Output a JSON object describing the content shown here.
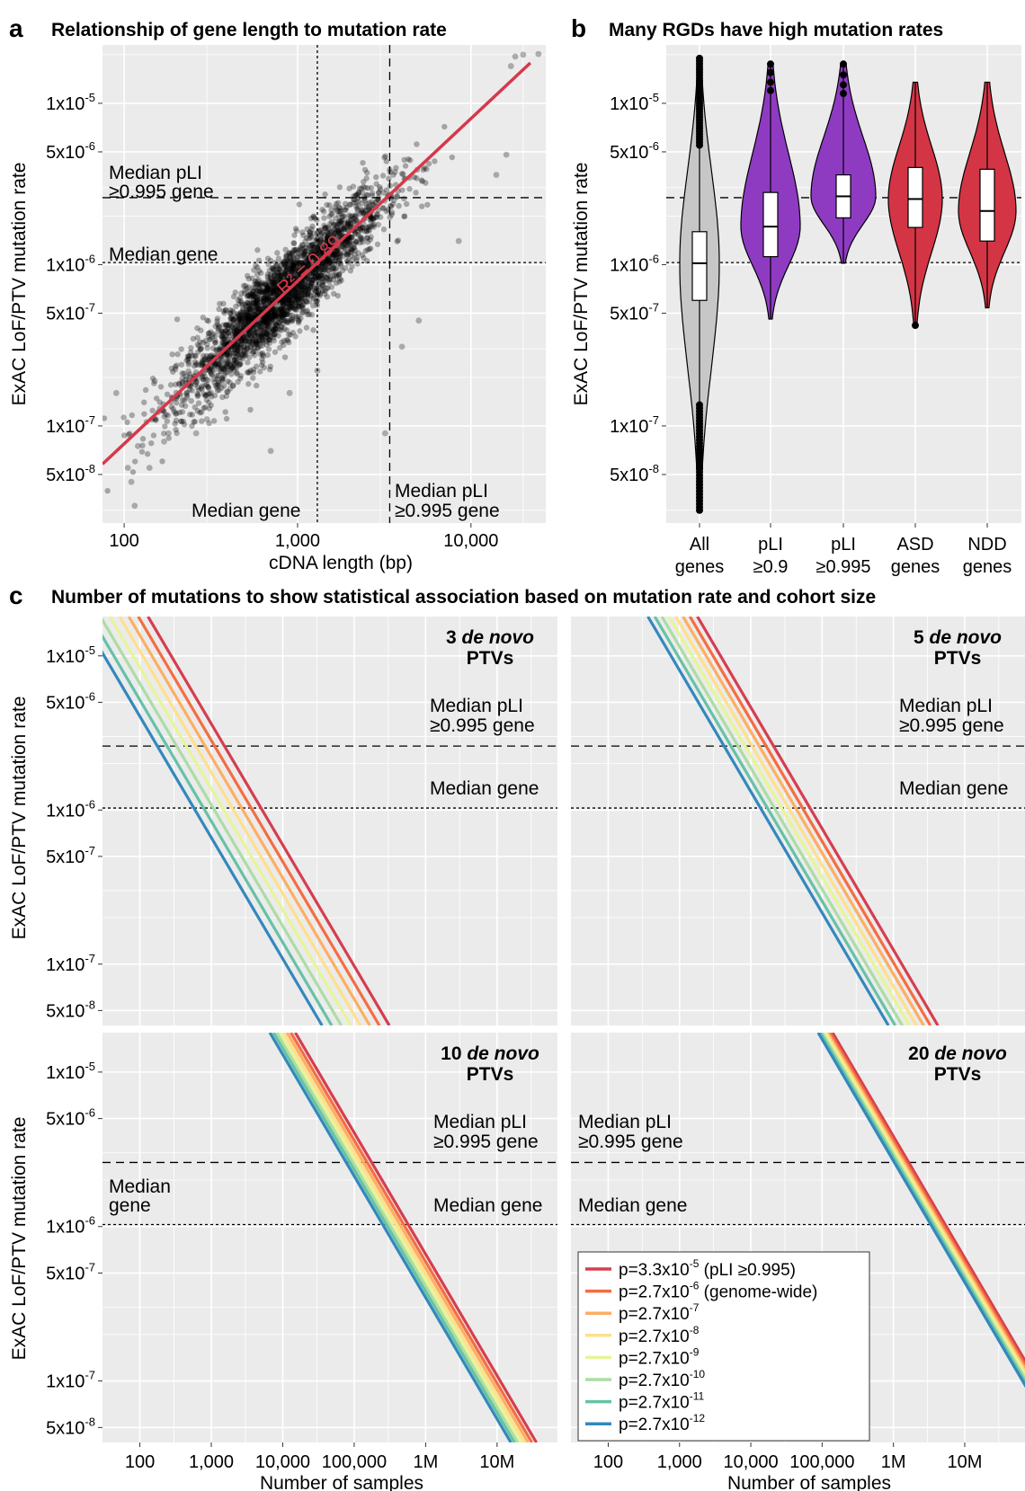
{
  "colors": {
    "panel_bg": "#EBEBEB",
    "grid": "#ffffff",
    "fit_line": "#D6384B",
    "all_genes": "#C7C7C7",
    "pli_violet": "#8E3BC2",
    "asd_ndd_red": "#D43545",
    "line_palette": [
      "#D53E4F",
      "#F46D43",
      "#FDAE61",
      "#FEE08B",
      "#E6F598",
      "#ABDDA4",
      "#66C2A5",
      "#3288BD"
    ]
  },
  "panels": {
    "a": {
      "label": "a",
      "title": "Relationship of gene length to mutation rate",
      "ylabel": "ExAC LoF/PTV mutation rate",
      "xlabel": "cDNA length (bp)",
      "x_ticks": [
        "100",
        "1,000",
        "10,000"
      ],
      "y_ticks": [
        "1x10",
        "5x10",
        "1x10",
        "5x10",
        "1x10",
        "5x10"
      ],
      "y_tick_exps": [
        "-5",
        "-6",
        "-6",
        "-7",
        "-7",
        "-8"
      ],
      "r2_label": "R² = 0.89",
      "ann_median_pli_1": "Median pLI",
      "ann_median_pli_2": "≥0.995 gene",
      "ann_median_gene": "Median gene",
      "ann_median_gene_x": "Median gene",
      "ann_median_pli_x1": "Median pLI",
      "ann_median_pli_x2": "≥0.995 gene"
    },
    "b": {
      "label": "b",
      "title": "Many RGDs have high mutation rates",
      "ylabel": "ExAC LoF/PTV mutation rate",
      "y_ticks": [
        "1x10",
        "5x10",
        "1x10",
        "5x10",
        "1x10",
        "5x10"
      ],
      "y_tick_exps": [
        "-5",
        "-6",
        "-6",
        "-7",
        "-7",
        "-8"
      ],
      "categories": [
        {
          "l1": "All",
          "l2": "genes"
        },
        {
          "l1": "pLI",
          "l2": "≥0.9"
        },
        {
          "l1": "pLI",
          "l2": "≥0.995"
        },
        {
          "l1": "ASD",
          "l2": "genes"
        },
        {
          "l1": "NDD",
          "l2": "genes"
        }
      ]
    },
    "c": {
      "label": "c",
      "title": "Number of mutations to show statistical association based on mutation rate and cohort size",
      "ylabel": "ExAC LoF/PTV mutation rate",
      "xlabel": "Number of samples",
      "x_ticks": [
        "100",
        "1,000",
        "10,000",
        "100,000",
        "1M",
        "10M"
      ],
      "y_ticks": [
        "1x10",
        "5x10",
        "1x10",
        "5x10",
        "1x10",
        "5x10"
      ],
      "y_tick_exps": [
        "-5",
        "-6",
        "-6",
        "-7",
        "-7",
        "-8"
      ],
      "subpanels": [
        {
          "num": "3",
          "word": "de novo",
          "line2": "PTVs"
        },
        {
          "num": "5",
          "word": "de novo",
          "line2": "PTVs"
        },
        {
          "num": "10",
          "word": "de novo",
          "line2": "PTVs"
        },
        {
          "num": "20",
          "word": "de novo",
          "line2": "PTVs"
        }
      ],
      "ann_median_pli_1": "Median pLI",
      "ann_median_pli_2": "≥0.995 gene",
      "ann_median_gene": "Median gene",
      "ann_median_1": "Median",
      "ann_gene": "gene",
      "legend": [
        {
          "base": "p=3.3x10",
          "exp": "-5",
          "note": " (pLI ≥0.995)"
        },
        {
          "base": "p=2.7x10",
          "exp": "-6",
          "note": " (genome-wide)"
        },
        {
          "base": "p=2.7x10",
          "exp": "-7",
          "note": ""
        },
        {
          "base": "p=2.7x10",
          "exp": "-8",
          "note": ""
        },
        {
          "base": "p=2.7x10",
          "exp": "-9",
          "note": ""
        },
        {
          "base": "p=2.7x10",
          "exp": "-10",
          "note": ""
        },
        {
          "base": "p=2.7x10",
          "exp": "-11",
          "note": ""
        },
        {
          "base": "p=2.7x10",
          "exp": "-12",
          "note": ""
        }
      ]
    }
  },
  "chart_data": [
    {
      "type": "scatter",
      "title": "Relationship of gene length to mutation rate",
      "xlabel": "cDNA length (bp)",
      "ylabel": "ExAC LoF/PTV mutation rate",
      "x_scale": "log",
      "y_scale": "log",
      "xlim": [
        75,
        27000
      ],
      "ylim": [
        2.5e-08,
        2.3e-05
      ],
      "fit": {
        "r2": 0.89,
        "from": [
          75,
          5.8e-08
        ],
        "to": [
          22000,
          1.78e-05
        ]
      },
      "reference_lines": {
        "median_gene_y": 1.03e-06,
        "median_pli_y": 2.6e-06,
        "median_gene_x": 1300,
        "median_pli_x": 3400
      },
      "outlier_points": [
        [
          90,
          1.6e-07
        ],
        [
          110,
          4.5e-08
        ],
        [
          115,
          3.2e-08
        ],
        [
          105,
          5.5e-08
        ],
        [
          120,
          7.5e-08
        ],
        [
          140,
          5.5e-08
        ],
        [
          170,
          8e-08
        ],
        [
          180,
          9e-08
        ],
        [
          200,
          1.2e-07
        ],
        [
          230,
          1.5e-07
        ],
        [
          150,
          1.9e-07
        ],
        [
          260,
          9e-08
        ],
        [
          300,
          1.1e-07
        ],
        [
          700,
          7e-08
        ],
        [
          900,
          1.6e-07
        ],
        [
          1300,
          2.2e-07
        ],
        [
          3200,
          9e-08
        ],
        [
          4000,
          3.1e-07
        ],
        [
          5000,
          4.5e-07
        ],
        [
          8500,
          1.4e-06
        ],
        [
          14000,
          3.6e-06
        ],
        [
          18000,
          1.95e-05
        ],
        [
          17000,
          1.7e-05
        ],
        [
          20000,
          2e-05
        ],
        [
          24500,
          2.02e-05
        ],
        [
          16000,
          4.8e-06
        ]
      ]
    },
    {
      "type": "violin",
      "title": "Many RGDs have high mutation rates",
      "ylabel": "ExAC LoF/PTV mutation rate",
      "y_scale": "log",
      "ylim": [
        2.5e-08,
        2.3e-05
      ],
      "categories": [
        "All genes",
        "pLI ≥0.9",
        "pLI ≥0.995",
        "ASD genes",
        "NDD genes"
      ],
      "series": [
        {
          "category": "All genes",
          "min": 3e-08,
          "q1": 6e-07,
          "median": 1.02e-06,
          "q3": 1.6e-06,
          "max": 1.9e-05
        },
        {
          "category": "pLI ≥0.9",
          "min": 4.6e-07,
          "q1": 1.12e-06,
          "median": 1.72e-06,
          "q3": 2.8e-06,
          "max": 1.75e-05
        },
        {
          "category": "pLI ≥0.995",
          "min": 1.02e-06,
          "q1": 1.95e-06,
          "median": 2.65e-06,
          "q3": 3.6e-06,
          "max": 1.75e-05
        },
        {
          "category": "ASD genes",
          "min": 4.2e-07,
          "q1": 1.7e-06,
          "median": 2.55e-06,
          "q3": 4e-06,
          "max": 1.35e-05
        },
        {
          "category": "NDD genes",
          "min": 5.4e-07,
          "q1": 1.4e-06,
          "median": 2.15e-06,
          "q3": 3.9e-06,
          "max": 1.35e-05
        }
      ]
    },
    {
      "type": "line",
      "title": "Number of mutations to show statistical association based on mutation rate and cohort size",
      "xlabel": "Number of samples",
      "ylabel": "ExAC LoF/PTV mutation rate",
      "x_scale": "log",
      "y_scale": "log",
      "xlim": [
        30,
        70000000
      ],
      "ylim": [
        4e-08,
        1.8e-05
      ],
      "reference_lines": {
        "median_gene_y": 1.03e-06,
        "median_pli_y": 2.6e-06
      },
      "panels": [
        {
          "name": "3 de novo PTVs",
          "series": [
            {
              "name": "p=3.3x10^-5 (pLI ≥0.995)",
              "points": [
                [
                  130,
                  1.8e-05
                ],
                [
                  310000,
                  4e-08
                ]
              ]
            },
            {
              "name": "p=2.7x10^-6 (genome-wide)",
              "points": [
                [
                  95,
                  1.8e-05
                ],
                [
                  225000,
                  4e-08
                ]
              ]
            },
            {
              "name": "p=2.7x10^-7",
              "points": [
                [
                  70,
                  1.8e-05
                ],
                [
                  165000,
                  4e-08
                ]
              ]
            },
            {
              "name": "p=2.7x10^-8",
              "points": [
                [
                  52,
                  1.8e-05
                ],
                [
                  122000,
                  4e-08
                ]
              ]
            },
            {
              "name": "p=2.7x10^-9",
              "points": [
                [
                  38,
                  1.8e-05
                ],
                [
                  90000,
                  4e-08
                ]
              ]
            },
            {
              "name": "p=2.7x10^-10",
              "points": [
                [
                  28,
                  1.8e-05
                ],
                [
                  66000,
                  4e-08
                ]
              ]
            },
            {
              "name": "p=2.7x10^-11",
              "points": [
                [
                  20.5,
                  1.8e-05
                ],
                [
                  48500,
                  4e-08
                ]
              ]
            },
            {
              "name": "p=2.7x10^-12",
              "points": [
                [
                  15,
                  1.8e-05
                ],
                [
                  35500,
                  4e-08
                ]
              ]
            }
          ]
        },
        {
          "name": "5 de novo PTVs",
          "series": [
            {
              "name": "p=3.3x10^-5 (pLI ≥0.995)",
              "points": [
                [
                  1780,
                  1.8e-05
                ],
                [
                  4200000,
                  4e-08
                ]
              ]
            },
            {
              "name": "p=2.7x10^-6 (genome-wide)",
              "points": [
                [
                  1400,
                  1.8e-05
                ],
                [
                  3300000,
                  4e-08
                ]
              ]
            },
            {
              "name": "p=2.7x10^-7",
              "points": [
                [
                  1120,
                  1.8e-05
                ],
                [
                  2650000,
                  4e-08
                ]
              ]
            },
            {
              "name": "p=2.7x10^-8",
              "points": [
                [
                  890,
                  1.8e-05
                ],
                [
                  2100000,
                  4e-08
                ]
              ]
            },
            {
              "name": "p=2.7x10^-9",
              "points": [
                [
                  710,
                  1.8e-05
                ],
                [
                  1680000,
                  4e-08
                ]
              ]
            },
            {
              "name": "p=2.7x10^-10",
              "points": [
                [
                  565,
                  1.8e-05
                ],
                [
                  1330000,
                  4e-08
                ]
              ]
            },
            {
              "name": "p=2.7x10^-11",
              "points": [
                [
                  450,
                  1.8e-05
                ],
                [
                  1060000,
                  4e-08
                ]
              ]
            },
            {
              "name": "p=2.7x10^-12",
              "points": [
                [
                  360,
                  1.8e-05
                ],
                [
                  850000,
                  4e-08
                ]
              ]
            }
          ]
        },
        {
          "name": "10 de novo PTVs",
          "series": [
            {
              "name": "p=3.3x10^-5 (pLI ≥0.995)",
              "points": [
                [
                  15000,
                  1.8e-05
                ],
                [
                  35500000,
                  4e-08
                ]
              ]
            },
            {
              "name": "p=2.7x10^-6 (genome-wide)",
              "points": [
                [
                  13000,
                  1.8e-05
                ],
                [
                  30700000,
                  4e-08
                ]
              ]
            },
            {
              "name": "p=2.7x10^-7",
              "points": [
                [
                  11500,
                  1.8e-05
                ],
                [
                  27200000,
                  4e-08
                ]
              ]
            },
            {
              "name": "p=2.7x10^-8",
              "points": [
                [
                  10200,
                  1.8e-05
                ],
                [
                  24100000,
                  4e-08
                ]
              ]
            },
            {
              "name": "p=2.7x10^-9",
              "points": [
                [
                  9100,
                  1.8e-05
                ],
                [
                  21500000,
                  4e-08
                ]
              ]
            },
            {
              "name": "p=2.7x10^-10",
              "points": [
                [
                  8200,
                  1.8e-05
                ],
                [
                  19400000,
                  4e-08
                ]
              ]
            },
            {
              "name": "p=2.7x10^-11",
              "points": [
                [
                  7400,
                  1.8e-05
                ],
                [
                  17500000,
                  4e-08
                ]
              ]
            },
            {
              "name": "p=2.7x10^-12",
              "points": [
                [
                  6600,
                  1.8e-05
                ],
                [
                  15600000,
                  4e-08
                ]
              ]
            }
          ]
        },
        {
          "name": "20 de novo PTVs",
          "series": [
            {
              "name": "p=3.3x10^-5 (pLI ≥0.995)",
              "points": [
                [
                  140000,
                  1.8e-05
                ],
                [
                  330000000,
                  4e-08
                ]
              ]
            },
            {
              "name": "p=2.7x10^-6 (genome-wide)",
              "points": [
                [
                  129000,
                  1.8e-05
                ],
                [
                  305000000,
                  4e-08
                ]
              ]
            },
            {
              "name": "p=2.7x10^-7",
              "points": [
                [
                  120000,
                  1.8e-05
                ],
                [
                  284000000,
                  4e-08
                ]
              ]
            },
            {
              "name": "p=2.7x10^-8",
              "points": [
                [
                  113000,
                  1.8e-05
                ],
                [
                  267000000,
                  4e-08
                ]
              ]
            },
            {
              "name": "p=2.7x10^-9",
              "points": [
                [
                  106000,
                  1.8e-05
                ],
                [
                  251000000,
                  4e-08
                ]
              ]
            },
            {
              "name": "p=2.7x10^-10",
              "points": [
                [
                  100000,
                  1.8e-05
                ],
                [
                  236000000,
                  4e-08
                ]
              ]
            },
            {
              "name": "p=2.7x10^-11",
              "points": [
                [
                  94000,
                  1.8e-05
                ],
                [
                  222000000,
                  4e-08
                ]
              ]
            },
            {
              "name": "p=2.7x10^-12",
              "points": [
                [
                  88000,
                  1.8e-05
                ],
                [
                  208000000,
                  4e-08
                ]
              ]
            }
          ]
        }
      ]
    }
  ]
}
